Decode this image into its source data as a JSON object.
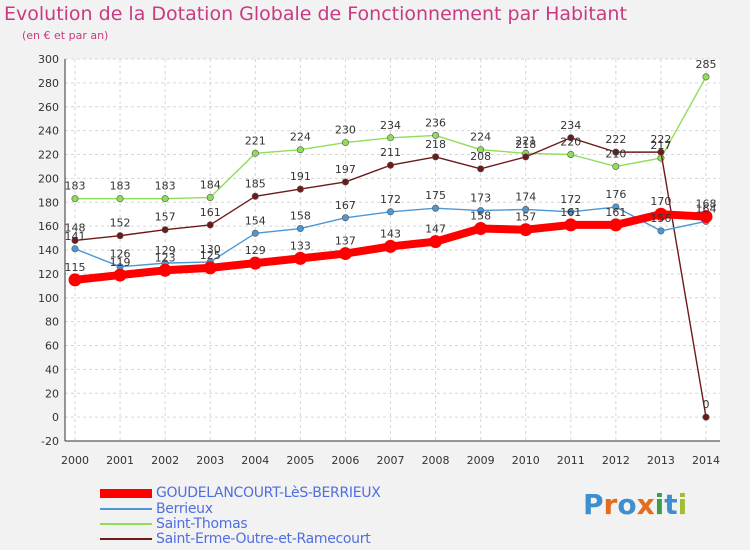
{
  "title": "Evolution de la Dotation Globale de Fonctionnement par Habitant",
  "subtitle": "(en € et par an)",
  "logo": {
    "text": "Proxiti",
    "colors": [
      "#3f8fcf",
      "#e36c1f",
      "#3f8fcf",
      "#e36c1f",
      "#3a9e4a",
      "#3f8fcf",
      "#9fbe30"
    ]
  },
  "chart_data": {
    "type": "line",
    "categories": [
      "2000",
      "2001",
      "2002",
      "2003",
      "2004",
      "2005",
      "2006",
      "2007",
      "2008",
      "2009",
      "2010",
      "2011",
      "2012",
      "2013",
      "2014"
    ],
    "ylim": [
      -20,
      300
    ],
    "yticks": [
      "-20",
      "0",
      "20",
      "40",
      "60",
      "80",
      "100",
      "120",
      "140",
      "160",
      "180",
      "200",
      "220",
      "240",
      "260",
      "280",
      "300"
    ],
    "grid": true,
    "series": [
      {
        "name": "GOUDELANCOURT-LèS-BERRIEUX",
        "color": "#ff0000",
        "values": [
          115,
          119,
          123,
          125,
          129,
          133,
          137,
          143,
          147,
          158,
          157,
          161,
          161,
          170,
          168
        ],
        "labels": [
          "115",
          "119",
          "123",
          "125",
          "129",
          "133",
          "137",
          "143",
          "147",
          "158",
          "157",
          "161",
          "161",
          "170",
          "168"
        ]
      },
      {
        "name": "Berrieux",
        "color": "#4d97d4",
        "values": [
          141,
          126,
          129,
          130,
          154,
          158,
          167,
          172,
          175,
          173,
          174,
          172,
          176,
          156,
          164
        ],
        "labels": [
          "141",
          "126",
          "129",
          "130",
          "154",
          "158",
          "167",
          "172",
          "175",
          "173",
          "174",
          "172",
          "176",
          "156",
          "164"
        ]
      },
      {
        "name": "Saint-Thomas",
        "color": "#8fde5a",
        "values": [
          183,
          183,
          183,
          184,
          221,
          224,
          230,
          234,
          236,
          224,
          221,
          220,
          210,
          217,
          285
        ],
        "labels": [
          "183",
          "183",
          "183",
          "184",
          "221",
          "224",
          "230",
          "234",
          "236",
          "224",
          "221",
          "220",
          "210",
          "217",
          "285"
        ]
      },
      {
        "name": "Saint-Erme-Outre-et-Ramecourt",
        "color": "#6e1a1a",
        "values": [
          148,
          152,
          157,
          161,
          185,
          191,
          197,
          211,
          218,
          208,
          218,
          234,
          222,
          222,
          0
        ],
        "labels": [
          "148",
          "152",
          "157",
          "161",
          "185",
          "191",
          "197",
          "211",
          "218",
          "208",
          "218",
          "234",
          "222",
          "222",
          "0"
        ]
      }
    ]
  }
}
